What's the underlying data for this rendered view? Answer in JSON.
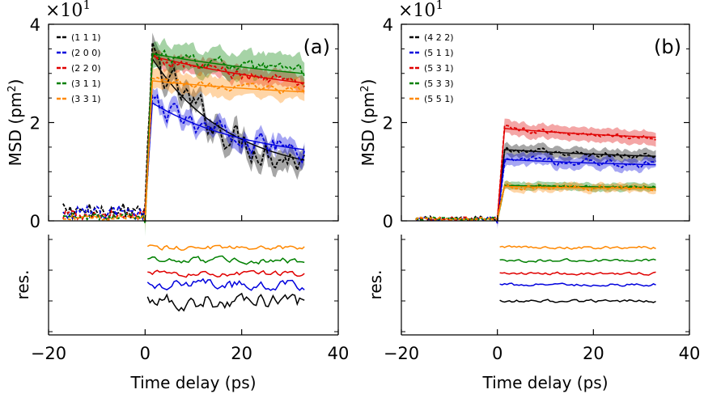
{
  "chart_data": [
    {
      "type": "line",
      "panel_label": "(a)",
      "xlabel": "Time delay (ps)",
      "ylabel": "MSD (pm",
      "ylabel_sup": "2",
      "ylabel_close": ")",
      "residual_label": "res.",
      "scale_base": "×10",
      "scale_exp": "1",
      "xlim": [
        -20,
        40
      ],
      "ylim": [
        0,
        40
      ],
      "xticks": [
        -20,
        0,
        20,
        40
      ],
      "xtick_labels": [
        "−20",
        "0",
        "20",
        "40"
      ],
      "yticks": [
        0,
        20,
        40
      ],
      "ytick_labels": [
        "0",
        "2",
        "4"
      ],
      "legend_position": "top-left",
      "series": [
        {
          "name": "(1 1 1)",
          "color": "#000000",
          "pre": 1.4,
          "peak": 33,
          "end": 9,
          "tau": 16,
          "noise": 2.6,
          "band": 2.0
        },
        {
          "name": "(2 0 0)",
          "color": "#0000dd",
          "pre": 1.2,
          "peak": 24,
          "end": 12,
          "tau": 20,
          "noise": 1.6,
          "band": 1.6
        },
        {
          "name": "(2 2 0)",
          "color": "#e00000",
          "pre": 0.8,
          "peak": 33.5,
          "end": 23.5,
          "tau": 40,
          "noise": 0.9,
          "band": 1.6
        },
        {
          "name": "(3 1 1)",
          "color": "#008000",
          "pre": 0.6,
          "peak": 34,
          "end": 26,
          "tau": 45,
          "noise": 1.0,
          "band": 2.6
        },
        {
          "name": "(3 3 1)",
          "color": "#ff8800",
          "pre": 0.5,
          "peak": 28.5,
          "end": 24,
          "tau": 45,
          "noise": 0.7,
          "band": 2.0
        }
      ]
    },
    {
      "type": "line",
      "panel_label": "(b)",
      "xlabel": "Time delay (ps)",
      "ylabel": "MSD (pm",
      "ylabel_sup": "2",
      "ylabel_close": ")",
      "residual_label": "res.",
      "scale_base": "×10",
      "scale_exp": "1",
      "xlim": [
        -20,
        40
      ],
      "ylim": [
        0,
        40
      ],
      "xticks": [
        -20,
        0,
        20,
        40
      ],
      "xtick_labels": [
        "−20",
        "0",
        "20",
        "40"
      ],
      "yticks": [
        0,
        20,
        40
      ],
      "ytick_labels": [
        "0",
        "2",
        "4"
      ],
      "legend_position": "top-left",
      "series": [
        {
          "name": "(4 2 2)",
          "color": "#000000",
          "pre": 0.4,
          "peak": 14.5,
          "end": 12,
          "tau": 40,
          "noise": 0.5,
          "band": 1.2
        },
        {
          "name": "(5 1 1)",
          "color": "#0000dd",
          "pre": 0.3,
          "peak": 12.5,
          "end": 10.5,
          "tau": 40,
          "noise": 0.6,
          "band": 1.2
        },
        {
          "name": "(5 3 1)",
          "color": "#e00000",
          "pre": 0.3,
          "peak": 18.8,
          "end": 15.5,
          "tau": 40,
          "noise": 0.4,
          "band": 1.4
        },
        {
          "name": "(5 3 3)",
          "color": "#008000",
          "pre": 0.3,
          "peak": 7.2,
          "end": 6.5,
          "tau": 40,
          "noise": 0.3,
          "band": 0.8
        },
        {
          "name": "(5 5 1)",
          "color": "#ff8800",
          "pre": 0.3,
          "peak": 7.0,
          "end": 6.2,
          "tau": 40,
          "noise": 0.4,
          "band": 0.8
        }
      ]
    }
  ]
}
